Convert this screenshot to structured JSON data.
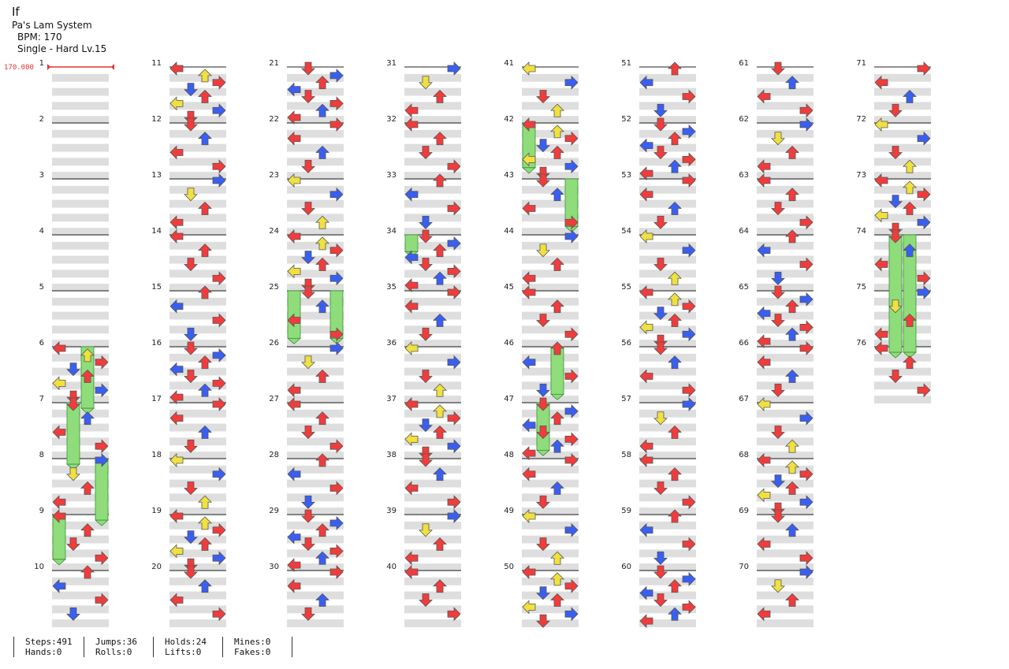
{
  "song": {
    "title": "If",
    "artist": "Pa's Lam System",
    "bpm_label": "BPM: 170",
    "difficulty_label": "Single - Hard  Lv.15"
  },
  "bpm_marker": "170.000",
  "colors": {
    "red_note": "#f03c3c",
    "blue_note": "#3a5ff0",
    "yellow_note": "#f0e040",
    "hold_body": "#8fdc7a",
    "row_band": "#dedede",
    "bpm_line": "#e53333"
  },
  "measure_labels": [
    "1",
    "2",
    "3",
    "4",
    "5",
    "6",
    "7",
    "8",
    "9",
    "10",
    "11",
    "12",
    "13",
    "14",
    "15",
    "16",
    "17",
    "18",
    "19",
    "20",
    "21",
    "22",
    "23",
    "24",
    "25",
    "26",
    "27",
    "28",
    "29",
    "30",
    "31",
    "32",
    "33",
    "34",
    "35",
    "36",
    "37",
    "38",
    "39",
    "40",
    "41",
    "42",
    "43",
    "44",
    "45",
    "46",
    "47",
    "48",
    "49",
    "50",
    "51",
    "52",
    "53",
    "54",
    "55",
    "56",
    "57",
    "58",
    "59",
    "60",
    "61",
    "62",
    "63",
    "64",
    "65",
    "66",
    "67",
    "68",
    "69",
    "70",
    "71",
    "72",
    "73",
    "74",
    "75",
    "76"
  ],
  "stats": {
    "steps": "Steps:491",
    "hands": "Hands:0",
    "jumps": "Jumps:36",
    "rolls": "Rolls:0",
    "holds": "Holds:24",
    "lifts": "Lifts:0",
    "mines": "Mines:0",
    "fakes": "Fakes:0"
  }
}
